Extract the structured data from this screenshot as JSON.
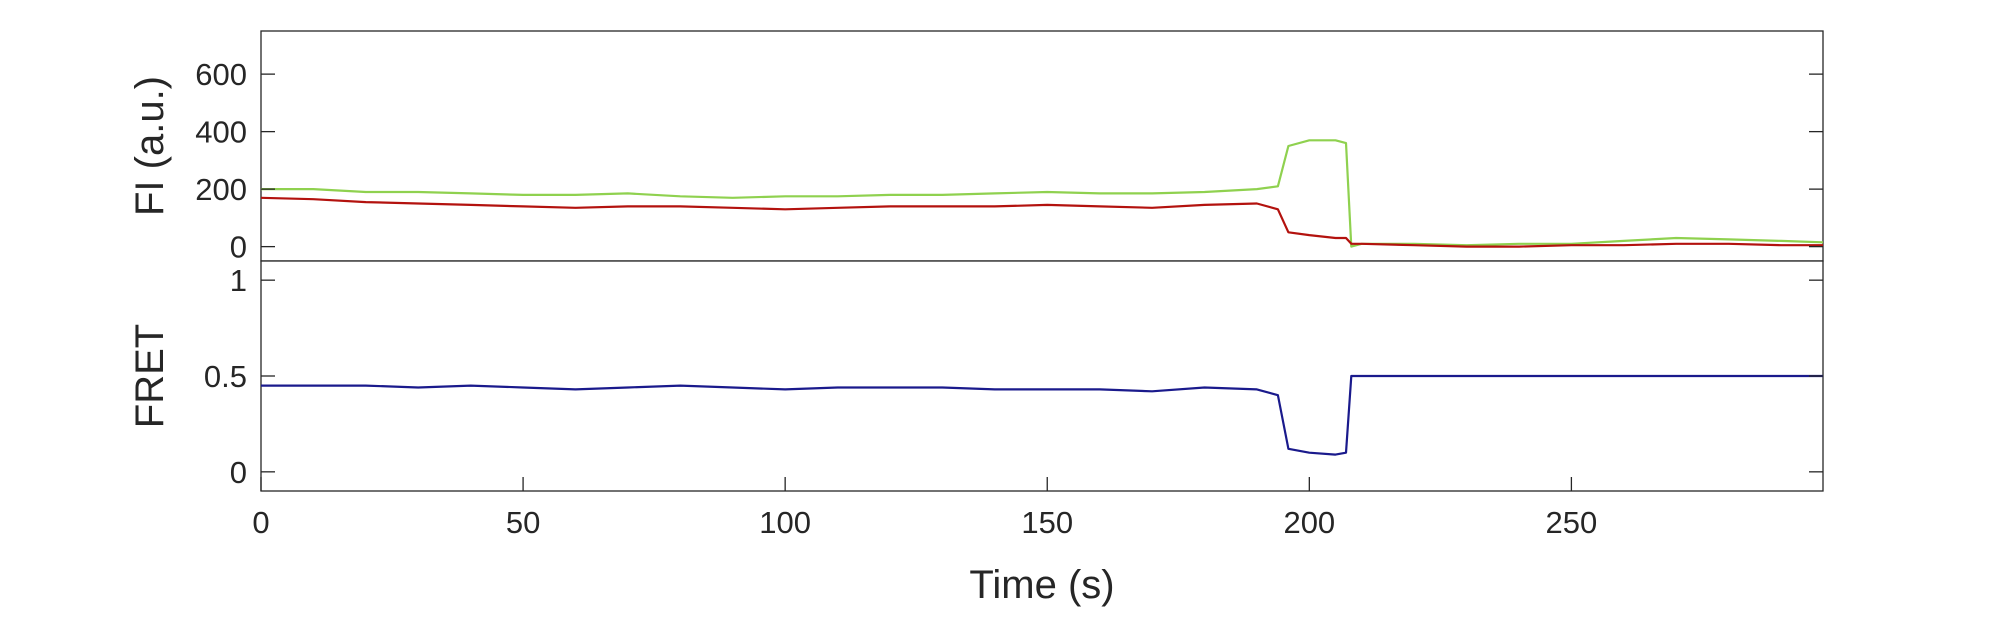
{
  "chart_data": [
    {
      "type": "line",
      "panel": "top",
      "title": "",
      "ylabel": "FI (a.u.)",
      "xlabel": "",
      "xlim": [
        0,
        298
      ],
      "ylim": [
        -50,
        750
      ],
      "yticks": [
        0,
        200,
        400,
        600
      ],
      "ytick_labels": [
        "0",
        "200",
        "400",
        "600"
      ],
      "series": [
        {
          "color": "#8fd14f",
          "x": [
            0,
            10,
            20,
            30,
            40,
            50,
            60,
            70,
            80,
            90,
            100,
            110,
            120,
            130,
            140,
            150,
            160,
            170,
            180,
            190,
            194,
            196,
            200,
            205,
            207,
            208,
            210,
            220,
            230,
            240,
            250,
            260,
            270,
            280,
            290,
            298
          ],
          "values": [
            200,
            200,
            190,
            190,
            185,
            180,
            180,
            185,
            175,
            170,
            175,
            175,
            180,
            180,
            185,
            190,
            185,
            185,
            190,
            200,
            210,
            350,
            370,
            370,
            360,
            0,
            10,
            10,
            5,
            10,
            10,
            20,
            30,
            25,
            20,
            15
          ]
        },
        {
          "color": "#b3120e",
          "x": [
            0,
            10,
            20,
            30,
            40,
            50,
            60,
            70,
            80,
            90,
            100,
            110,
            120,
            130,
            140,
            150,
            160,
            170,
            180,
            190,
            194,
            196,
            200,
            205,
            207,
            208,
            210,
            220,
            230,
            240,
            250,
            260,
            270,
            280,
            290,
            298
          ],
          "values": [
            170,
            165,
            155,
            150,
            145,
            140,
            135,
            140,
            140,
            135,
            130,
            135,
            140,
            140,
            140,
            145,
            140,
            135,
            145,
            150,
            130,
            50,
            40,
            30,
            30,
            10,
            10,
            5,
            0,
            0,
            5,
            5,
            10,
            10,
            5,
            5
          ]
        }
      ]
    },
    {
      "type": "line",
      "panel": "bottom",
      "title": "",
      "ylabel": "FRET",
      "xlabel": "Time (s)",
      "xlim": [
        0,
        298
      ],
      "ylim": [
        -0.1,
        1.1
      ],
      "yticks": [
        0,
        0.5,
        1
      ],
      "ytick_labels": [
        "0",
        "0.5",
        "1"
      ],
      "xticks": [
        0,
        50,
        100,
        150,
        200,
        250
      ],
      "xtick_labels": [
        "0",
        "50",
        "100",
        "150",
        "200",
        "250"
      ],
      "series": [
        {
          "color": "#1a1a8c",
          "x": [
            0,
            10,
            20,
            30,
            40,
            50,
            60,
            70,
            80,
            90,
            100,
            110,
            120,
            130,
            140,
            150,
            160,
            170,
            180,
            190,
            194,
            196,
            200,
            205,
            207,
            208,
            210,
            220,
            230,
            240,
            250,
            260,
            270,
            280,
            290,
            298
          ],
          "values": [
            0.45,
            0.45,
            0.45,
            0.44,
            0.45,
            0.44,
            0.43,
            0.44,
            0.45,
            0.44,
            0.43,
            0.44,
            0.44,
            0.44,
            0.43,
            0.43,
            0.43,
            0.42,
            0.44,
            0.43,
            0.4,
            0.12,
            0.1,
            0.09,
            0.1,
            0.5,
            0.5,
            0.5,
            0.5,
            0.5,
            0.5,
            0.5,
            0.5,
            0.5,
            0.5,
            0.5
          ]
        }
      ]
    }
  ]
}
